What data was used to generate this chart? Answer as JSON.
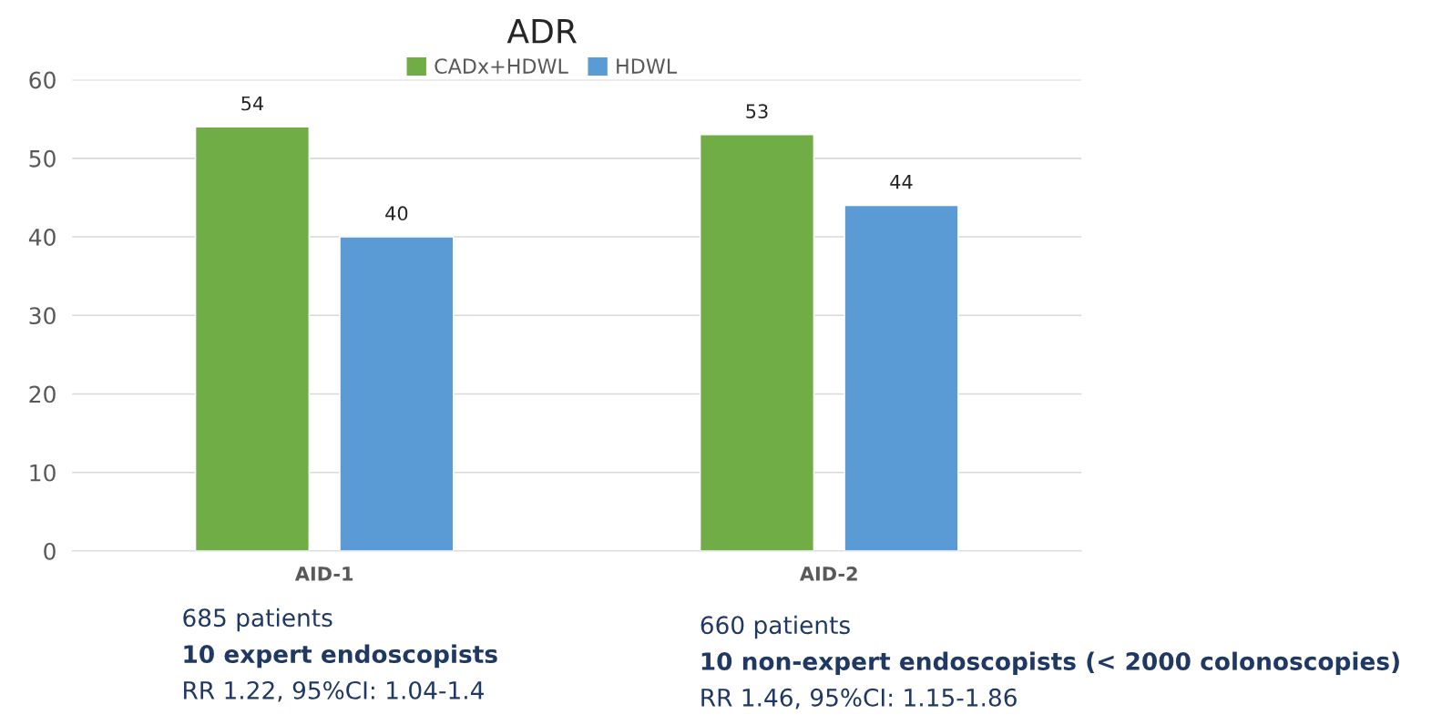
{
  "chart_data": {
    "type": "bar",
    "title": "ADR",
    "categories": [
      "AID-1",
      "AID-2"
    ],
    "series": [
      {
        "name": "CADx+HDWL",
        "color": "#70ad47",
        "values": [
          54,
          53
        ]
      },
      {
        "name": "HDWL",
        "color": "#5b9bd5",
        "values": [
          40,
          44
        ]
      }
    ],
    "ylim": [
      0,
      60
    ],
    "yticks": [
      0,
      10,
      20,
      30,
      40,
      50,
      60
    ],
    "grid": "y",
    "legend": "top",
    "data_labels": true,
    "annotations": [
      "685 patients",
      "10 expert endoscopists",
      "RR 1.22, 95%CI: 1.04-1.4",
      "660 patients",
      "10 non-expert endoscopists (< 2000 colonoscopies)",
      "RR 1.46, 95%CI: 1.15-1.86"
    ]
  }
}
